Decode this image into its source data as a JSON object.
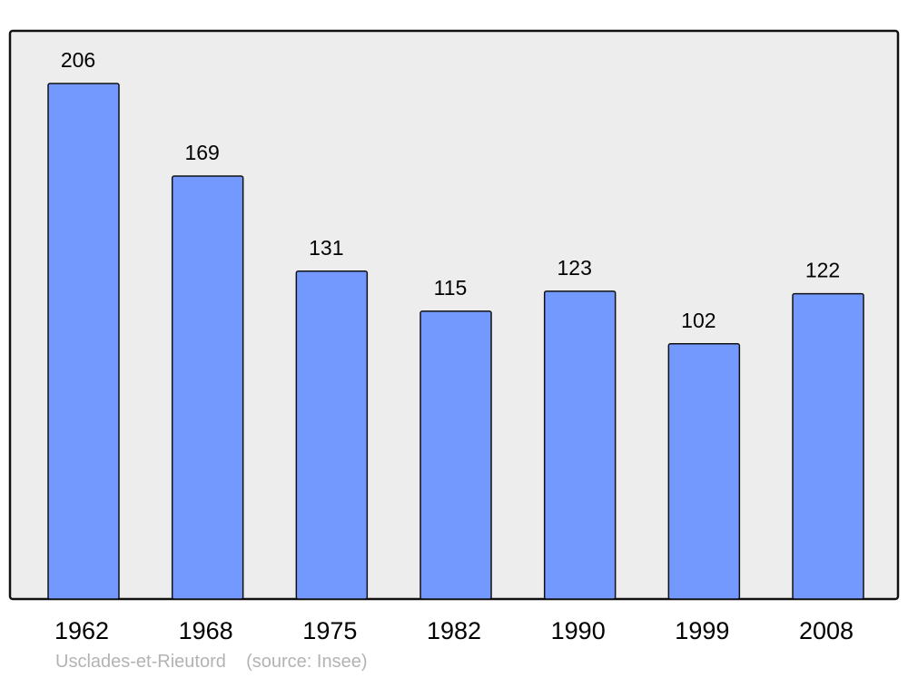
{
  "chart_data": {
    "type": "bar",
    "categories": [
      "1962",
      "1968",
      "1975",
      "1982",
      "1990",
      "1999",
      "2008"
    ],
    "values": [
      206,
      169,
      131,
      115,
      123,
      102,
      122
    ],
    "title": "",
    "xlabel": "",
    "ylabel": "",
    "grid": false,
    "bar_color": "#7399ff",
    "background_color": "#ededed"
  },
  "footer": {
    "place": "Usclades-et-Rieutord",
    "source": "(source: Insee)"
  }
}
